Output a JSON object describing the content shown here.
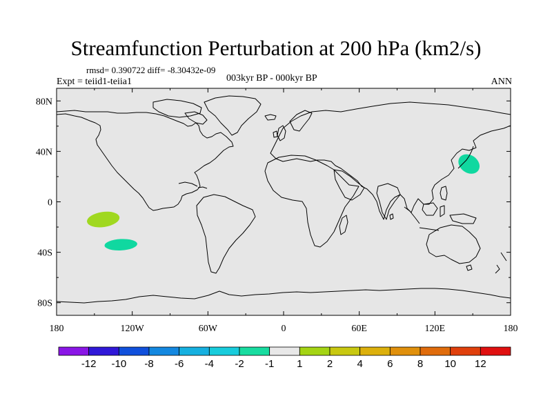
{
  "title": "Streamfunction Perturbation at 200 hPa (km2/s)",
  "stats": "rmsd= 0.390722 diff= -8.30432e-09",
  "experiment": "Expt = teiid1-teiia1",
  "period": "003kyr BP - 000kyr BP",
  "season": "ANN",
  "map": {
    "projection": "cylindrical equidistant",
    "background_color": "#e6e6e6",
    "lon_range": [
      -180,
      180
    ],
    "lat_range": [
      -90,
      90
    ],
    "lat_ticks": [
      {
        "value": 80,
        "label": "80N"
      },
      {
        "value": 40,
        "label": "40N"
      },
      {
        "value": 0,
        "label": "0"
      },
      {
        "value": -40,
        "label": "40S"
      },
      {
        "value": -80,
        "label": "80S"
      }
    ],
    "lon_ticks": [
      {
        "value": -180,
        "label": "180"
      },
      {
        "value": -120,
        "label": "120W"
      },
      {
        "value": -60,
        "label": "60W"
      },
      {
        "value": 0,
        "label": "0"
      },
      {
        "value": 60,
        "label": "60E"
      },
      {
        "value": 120,
        "label": "120E"
      },
      {
        "value": 180,
        "label": "180"
      }
    ],
    "anomalies": [
      {
        "name": "north-pacific-negative",
        "lon": 147,
        "lat": 30,
        "rlon": 9,
        "rlat": 7,
        "rot": 35,
        "color": "#10d8a0"
      },
      {
        "name": "tropical-pacific-positive",
        "lon": -143,
        "lat": -14,
        "rlon": 13,
        "rlat": 6,
        "rot": -8,
        "color": "#a0d820"
      },
      {
        "name": "south-pacific-negative",
        "lon": -129,
        "lat": -34,
        "rlon": 13,
        "rlat": 4.5,
        "rot": -3,
        "color": "#10d8a0"
      }
    ]
  },
  "colorbar": {
    "colors": [
      "#8a16e6",
      "#3018d8",
      "#1050dc",
      "#1488e0",
      "#16b0e0",
      "#18ccdc",
      "#18dca0",
      "#e8e8e8",
      "#a4d414",
      "#c8c810",
      "#dcb00c",
      "#e0900c",
      "#e06c0c",
      "#e0400c",
      "#e01010"
    ],
    "labels": [
      "-12",
      "-10",
      "-8",
      "-6",
      "-4",
      "-2",
      "-1",
      "1",
      "2",
      "4",
      "6",
      "8",
      "10",
      "12"
    ]
  }
}
